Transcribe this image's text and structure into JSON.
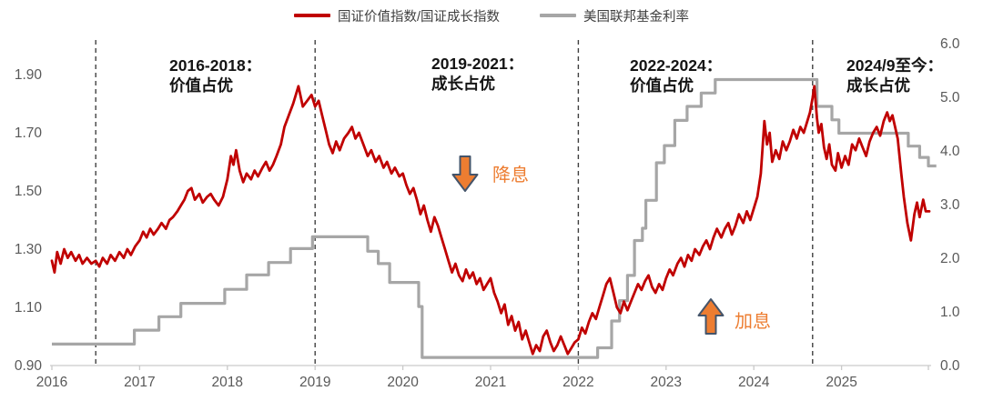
{
  "chart_data": {
    "type": "line",
    "title": "",
    "legend_position": "top",
    "x_axis": {
      "ticks": [
        2016,
        2017,
        2018,
        2019,
        2020,
        2021,
        2022,
        2023,
        2024,
        2025
      ],
      "min": 2016,
      "max": 2026.05,
      "grid": false
    },
    "y_axis_left": {
      "ticks": [
        "1.90",
        "1.70",
        "1.50",
        "1.30",
        "1.10",
        "0.90"
      ],
      "tick_values": [
        1.9,
        1.7,
        1.5,
        1.3,
        1.1,
        0.9
      ],
      "min": 0.9,
      "max": 2.01
    },
    "y_axis_right": {
      "ticks": [
        "6.0",
        "5.0",
        "4.0",
        "3.0",
        "2.0",
        "1.0",
        "0.0"
      ],
      "tick_values": [
        6.0,
        5.0,
        4.0,
        3.0,
        2.0,
        1.0,
        0.0
      ],
      "min": 0.0,
      "max": 6.0
    },
    "period_dividers_x": [
      2016.5,
      2019.0,
      2022.0,
      2024.67
    ],
    "annotations": [
      {
        "line1": "2016-2018：",
        "line2": "价值占优"
      },
      {
        "line1": "2019-2021：",
        "line2": "成长占优"
      },
      {
        "line1": "2022-2024：",
        "line2": "价值占优"
      },
      {
        "line1": "2024/9至今：",
        "line2": "成长占优"
      }
    ],
    "arrows": [
      {
        "direction": "down",
        "label": "降息",
        "color": "#ED7D31"
      },
      {
        "direction": "up",
        "label": "加息",
        "color": "#ED7D31"
      }
    ],
    "series": [
      {
        "name": "国证价值指数/国证成长指数",
        "color": "#C00000",
        "axis": "left",
        "style": "line",
        "points": [
          [
            2016.0,
            1.26
          ],
          [
            2016.03,
            1.22
          ],
          [
            2016.06,
            1.29
          ],
          [
            2016.1,
            1.25
          ],
          [
            2016.14,
            1.3
          ],
          [
            2016.18,
            1.27
          ],
          [
            2016.22,
            1.29
          ],
          [
            2016.27,
            1.26
          ],
          [
            2016.31,
            1.28
          ],
          [
            2016.35,
            1.25
          ],
          [
            2016.4,
            1.27
          ],
          [
            2016.45,
            1.25
          ],
          [
            2016.5,
            1.26
          ],
          [
            2016.54,
            1.24
          ],
          [
            2016.58,
            1.27
          ],
          [
            2016.63,
            1.25
          ],
          [
            2016.67,
            1.28
          ],
          [
            2016.72,
            1.26
          ],
          [
            2016.77,
            1.29
          ],
          [
            2016.82,
            1.27
          ],
          [
            2016.86,
            1.3
          ],
          [
            2016.9,
            1.28
          ],
          [
            2016.95,
            1.31
          ],
          [
            2017.0,
            1.33
          ],
          [
            2017.04,
            1.36
          ],
          [
            2017.08,
            1.34
          ],
          [
            2017.12,
            1.37
          ],
          [
            2017.16,
            1.35
          ],
          [
            2017.21,
            1.37
          ],
          [
            2017.25,
            1.39
          ],
          [
            2017.3,
            1.37
          ],
          [
            2017.34,
            1.4
          ],
          [
            2017.38,
            1.41
          ],
          [
            2017.43,
            1.43
          ],
          [
            2017.47,
            1.45
          ],
          [
            2017.51,
            1.47
          ],
          [
            2017.55,
            1.5
          ],
          [
            2017.59,
            1.51
          ],
          [
            2017.63,
            1.47
          ],
          [
            2017.68,
            1.49
          ],
          [
            2017.72,
            1.46
          ],
          [
            2017.77,
            1.48
          ],
          [
            2017.81,
            1.49
          ],
          [
            2017.85,
            1.47
          ],
          [
            2017.9,
            1.45
          ],
          [
            2017.95,
            1.48
          ],
          [
            2018.0,
            1.54
          ],
          [
            2018.04,
            1.62
          ],
          [
            2018.07,
            1.59
          ],
          [
            2018.1,
            1.64
          ],
          [
            2018.14,
            1.57
          ],
          [
            2018.18,
            1.53
          ],
          [
            2018.22,
            1.56
          ],
          [
            2018.27,
            1.54
          ],
          [
            2018.31,
            1.57
          ],
          [
            2018.35,
            1.55
          ],
          [
            2018.4,
            1.58
          ],
          [
            2018.44,
            1.6
          ],
          [
            2018.48,
            1.57
          ],
          [
            2018.52,
            1.59
          ],
          [
            2018.56,
            1.62
          ],
          [
            2018.61,
            1.66
          ],
          [
            2018.65,
            1.72
          ],
          [
            2018.7,
            1.76
          ],
          [
            2018.75,
            1.8
          ],
          [
            2018.81,
            1.86
          ],
          [
            2018.86,
            1.79
          ],
          [
            2018.91,
            1.81
          ],
          [
            2018.96,
            1.83
          ],
          [
            2019.0,
            1.79
          ],
          [
            2019.04,
            1.81
          ],
          [
            2019.08,
            1.76
          ],
          [
            2019.12,
            1.71
          ],
          [
            2019.16,
            1.66
          ],
          [
            2019.2,
            1.63
          ],
          [
            2019.24,
            1.67
          ],
          [
            2019.28,
            1.64
          ],
          [
            2019.33,
            1.68
          ],
          [
            2019.38,
            1.7
          ],
          [
            2019.42,
            1.72
          ],
          [
            2019.46,
            1.68
          ],
          [
            2019.5,
            1.7
          ],
          [
            2019.55,
            1.66
          ],
          [
            2019.6,
            1.62
          ],
          [
            2019.64,
            1.64
          ],
          [
            2019.69,
            1.6
          ],
          [
            2019.73,
            1.62
          ],
          [
            2019.78,
            1.58
          ],
          [
            2019.82,
            1.6
          ],
          [
            2019.87,
            1.56
          ],
          [
            2019.91,
            1.58
          ],
          [
            2019.96,
            1.55
          ],
          [
            2020.0,
            1.56
          ],
          [
            2020.04,
            1.52
          ],
          [
            2020.08,
            1.49
          ],
          [
            2020.12,
            1.51
          ],
          [
            2020.16,
            1.47
          ],
          [
            2020.2,
            1.42
          ],
          [
            2020.24,
            1.45
          ],
          [
            2020.28,
            1.4
          ],
          [
            2020.32,
            1.36
          ],
          [
            2020.36,
            1.41
          ],
          [
            2020.4,
            1.38
          ],
          [
            2020.44,
            1.34
          ],
          [
            2020.48,
            1.3
          ],
          [
            2020.52,
            1.26
          ],
          [
            2020.56,
            1.22
          ],
          [
            2020.6,
            1.25
          ],
          [
            2020.64,
            1.21
          ],
          [
            2020.68,
            1.19
          ],
          [
            2020.72,
            1.23
          ],
          [
            2020.76,
            1.2
          ],
          [
            2020.8,
            1.22
          ],
          [
            2020.84,
            1.18
          ],
          [
            2020.88,
            1.2
          ],
          [
            2020.92,
            1.16
          ],
          [
            2020.96,
            1.18
          ],
          [
            2021.0,
            1.2
          ],
          [
            2021.04,
            1.15
          ],
          [
            2021.08,
            1.12
          ],
          [
            2021.12,
            1.08
          ],
          [
            2021.16,
            1.11
          ],
          [
            2021.2,
            1.04
          ],
          [
            2021.24,
            1.07
          ],
          [
            2021.28,
            1.02
          ],
          [
            2021.32,
            1.05
          ],
          [
            2021.36,
            0.99
          ],
          [
            2021.4,
            1.02
          ],
          [
            2021.44,
            0.98
          ],
          [
            2021.48,
            0.94
          ],
          [
            2021.52,
            0.97
          ],
          [
            2021.56,
            0.95
          ],
          [
            2021.6,
            1.0
          ],
          [
            2021.64,
            1.02
          ],
          [
            2021.68,
            0.98
          ],
          [
            2021.72,
            0.95
          ],
          [
            2021.76,
            0.97
          ],
          [
            2021.8,
            1.0
          ],
          [
            2021.84,
            0.97
          ],
          [
            2021.88,
            0.94
          ],
          [
            2021.92,
            0.96
          ],
          [
            2021.96,
            0.98
          ],
          [
            2022.0,
            0.99
          ],
          [
            2022.04,
            1.03
          ],
          [
            2022.08,
            1.01
          ],
          [
            2022.12,
            1.05
          ],
          [
            2022.16,
            1.08
          ],
          [
            2022.2,
            1.06
          ],
          [
            2022.24,
            1.1
          ],
          [
            2022.28,
            1.14
          ],
          [
            2022.32,
            1.18
          ],
          [
            2022.36,
            1.2
          ],
          [
            2022.4,
            1.15
          ],
          [
            2022.44,
            1.1
          ],
          [
            2022.48,
            1.08
          ],
          [
            2022.52,
            1.12
          ],
          [
            2022.56,
            1.09
          ],
          [
            2022.6,
            1.12
          ],
          [
            2022.64,
            1.15
          ],
          [
            2022.68,
            1.18
          ],
          [
            2022.72,
            1.16
          ],
          [
            2022.76,
            1.19
          ],
          [
            2022.8,
            1.21
          ],
          [
            2022.84,
            1.17
          ],
          [
            2022.88,
            1.15
          ],
          [
            2022.92,
            1.18
          ],
          [
            2022.96,
            1.16
          ],
          [
            2023.0,
            1.2
          ],
          [
            2023.04,
            1.23
          ],
          [
            2023.08,
            1.21
          ],
          [
            2023.13,
            1.25
          ],
          [
            2023.17,
            1.27
          ],
          [
            2023.21,
            1.24
          ],
          [
            2023.25,
            1.28
          ],
          [
            2023.29,
            1.26
          ],
          [
            2023.33,
            1.3
          ],
          [
            2023.38,
            1.28
          ],
          [
            2023.42,
            1.31
          ],
          [
            2023.46,
            1.33
          ],
          [
            2023.5,
            1.3
          ],
          [
            2023.54,
            1.34
          ],
          [
            2023.58,
            1.37
          ],
          [
            2023.63,
            1.34
          ],
          [
            2023.67,
            1.37
          ],
          [
            2023.71,
            1.39
          ],
          [
            2023.75,
            1.35
          ],
          [
            2023.79,
            1.38
          ],
          [
            2023.83,
            1.42
          ],
          [
            2023.88,
            1.39
          ],
          [
            2023.92,
            1.43
          ],
          [
            2023.96,
            1.4
          ],
          [
            2024.0,
            1.44
          ],
          [
            2024.04,
            1.48
          ],
          [
            2024.08,
            1.56
          ],
          [
            2024.12,
            1.74
          ],
          [
            2024.15,
            1.66
          ],
          [
            2024.18,
            1.7
          ],
          [
            2024.21,
            1.6
          ],
          [
            2024.25,
            1.64
          ],
          [
            2024.29,
            1.61
          ],
          [
            2024.33,
            1.67
          ],
          [
            2024.37,
            1.64
          ],
          [
            2024.41,
            1.67
          ],
          [
            2024.45,
            1.71
          ],
          [
            2024.49,
            1.68
          ],
          [
            2024.53,
            1.72
          ],
          [
            2024.57,
            1.7
          ],
          [
            2024.61,
            1.74
          ],
          [
            2024.64,
            1.77
          ],
          [
            2024.67,
            1.82
          ],
          [
            2024.69,
            1.86
          ],
          [
            2024.72,
            1.75
          ],
          [
            2024.74,
            1.7
          ],
          [
            2024.77,
            1.73
          ],
          [
            2024.8,
            1.65
          ],
          [
            2024.83,
            1.61
          ],
          [
            2024.86,
            1.66
          ],
          [
            2024.89,
            1.59
          ],
          [
            2024.93,
            1.57
          ],
          [
            2024.96,
            1.63
          ],
          [
            2025.0,
            1.58
          ],
          [
            2025.04,
            1.62
          ],
          [
            2025.08,
            1.59
          ],
          [
            2025.12,
            1.66
          ],
          [
            2025.16,
            1.64
          ],
          [
            2025.2,
            1.68
          ],
          [
            2025.24,
            1.65
          ],
          [
            2025.28,
            1.62
          ],
          [
            2025.32,
            1.67
          ],
          [
            2025.36,
            1.7
          ],
          [
            2025.4,
            1.72
          ],
          [
            2025.44,
            1.69
          ],
          [
            2025.48,
            1.74
          ],
          [
            2025.52,
            1.77
          ],
          [
            2025.55,
            1.74
          ],
          [
            2025.58,
            1.76
          ],
          [
            2025.61,
            1.72
          ],
          [
            2025.64,
            1.68
          ],
          [
            2025.68,
            1.56
          ],
          [
            2025.71,
            1.48
          ],
          [
            2025.75,
            1.39
          ],
          [
            2025.79,
            1.33
          ],
          [
            2025.83,
            1.42
          ],
          [
            2025.86,
            1.46
          ],
          [
            2025.89,
            1.41
          ],
          [
            2025.93,
            1.47
          ],
          [
            2025.96,
            1.43
          ],
          [
            2026.0,
            1.43
          ]
        ]
      },
      {
        "name": "美国联邦基金利率",
        "color": "#A6A6A6",
        "axis": "right",
        "style": "step",
        "points": [
          [
            2016.0,
            0.4
          ],
          [
            2016.94,
            0.66
          ],
          [
            2017.22,
            0.91
          ],
          [
            2017.47,
            1.16
          ],
          [
            2017.97,
            1.42
          ],
          [
            2018.22,
            1.69
          ],
          [
            2018.47,
            1.92
          ],
          [
            2018.72,
            2.18
          ],
          [
            2018.97,
            2.4
          ],
          [
            2019.6,
            2.13
          ],
          [
            2019.72,
            1.9
          ],
          [
            2019.85,
            1.55
          ],
          [
            2020.18,
            1.1
          ],
          [
            2020.22,
            0.15
          ],
          [
            2022.22,
            0.33
          ],
          [
            2022.38,
            0.83
          ],
          [
            2022.47,
            1.21
          ],
          [
            2022.56,
            1.68
          ],
          [
            2022.64,
            2.33
          ],
          [
            2022.73,
            2.56
          ],
          [
            2022.77,
            3.08
          ],
          [
            2022.89,
            3.78
          ],
          [
            2022.98,
            4.1
          ],
          [
            2023.1,
            4.57
          ],
          [
            2023.24,
            4.83
          ],
          [
            2023.4,
            5.08
          ],
          [
            2023.56,
            5.33
          ],
          [
            2024.72,
            4.83
          ],
          [
            2024.89,
            4.58
          ],
          [
            2024.97,
            4.33
          ],
          [
            2025.76,
            4.09
          ],
          [
            2025.89,
            3.88
          ],
          [
            2025.99,
            3.72
          ]
        ]
      }
    ],
    "colors": {
      "value_growth_line": "#C00000",
      "fed_funds_line": "#A6A6A6",
      "arrow_fill": "#ED7D31",
      "arrow_outline": "#44546A",
      "axis_line": "#C9C9C9",
      "axis_text": "#595959",
      "divider": "#404040"
    }
  }
}
